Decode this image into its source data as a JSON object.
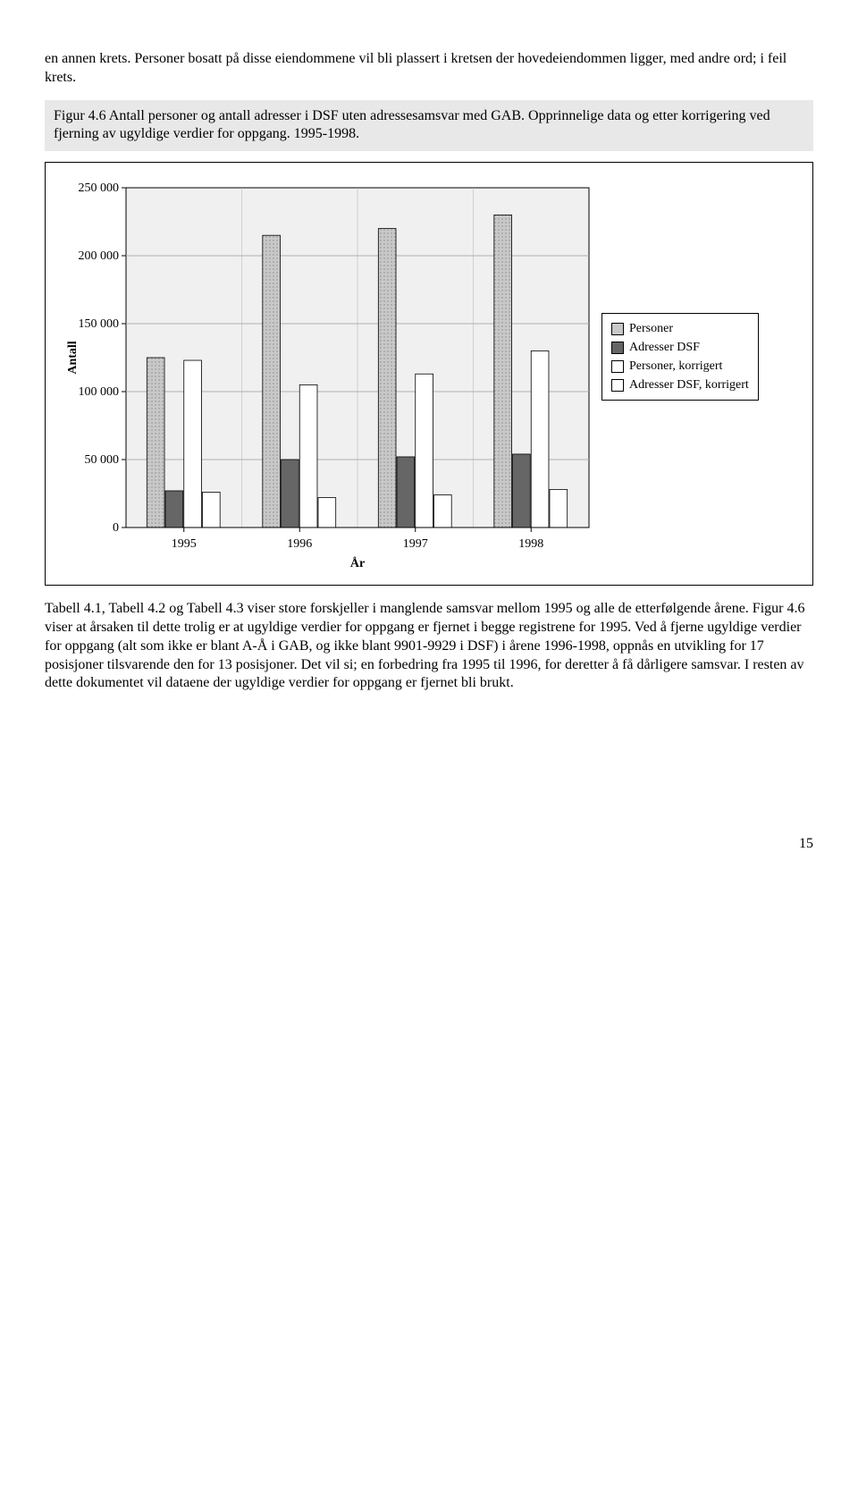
{
  "intro_paragraph": "en annen krets. Personer bosatt på disse eiendommene vil bli plassert i kretsen der hovedeiendommen ligger, med andre ord; i feil krets.",
  "figure_caption": "Figur 4.6 Antall personer og antall adresser i DSF uten adressesamsvar med GAB. Opprinnelige data og etter korrigering ved fjerning av ugyldige verdier for oppgang. 1995-1998.",
  "chart": {
    "type": "bar",
    "y_axis_label": "Antall",
    "x_axis_label": "År",
    "categories": [
      "1995",
      "1996",
      "1997",
      "1998"
    ],
    "series": [
      {
        "name": "Personer",
        "fill": "#c8c8c8",
        "pattern": "dots",
        "values": [
          125000,
          215000,
          220000,
          230000
        ]
      },
      {
        "name": "Adresser DSF",
        "fill": "#666666",
        "pattern": "solid",
        "values": [
          27000,
          50000,
          52000,
          54000
        ]
      },
      {
        "name": "Personer, korrigert",
        "fill": "#ffffff",
        "pattern": "none",
        "values": [
          123000,
          105000,
          113000,
          130000
        ]
      },
      {
        "name": "Adresser DSF, korrigert",
        "fill": "#ffffff",
        "pattern": "none",
        "values": [
          26000,
          22000,
          24000,
          28000
        ]
      }
    ],
    "ylim": [
      0,
      250000
    ],
    "ytick_step": 50000,
    "ytick_labels": [
      "0",
      "50 000",
      "100 000",
      "150 000",
      "200 000",
      "250 000"
    ],
    "plot_bg": "#f0f0f0",
    "grid_color": "#b0b0b0",
    "bar_border": "#000000",
    "label_fontsize": 14,
    "axis_fontsize": 14
  },
  "legend_labels": {
    "s0": "Personer",
    "s1": "Adresser DSF",
    "s2": "Personer, korrigert",
    "s3": "Adresser DSF, korrigert"
  },
  "body_paragraph": "Tabell 4.1, Tabell 4.2 og Tabell 4.3 viser store forskjeller i manglende samsvar mellom 1995 og alle de etterfølgende årene. Figur 4.6 viser at årsaken til dette trolig er at ugyldige verdier for oppgang er fjernet i begge registrene for 1995. Ved å fjerne ugyldige verdier for oppgang (alt som ikke er blant A-Å i GAB, og ikke blant 9901-9929 i DSF) i årene 1996-1998, oppnås en utvikling for 17 posisjoner tilsvarende den for 13 posisjoner. Det vil si; en forbedring fra 1995 til 1996, for deretter å få dårligere samsvar. I resten av dette dokumentet vil dataene der ugyldige verdier for oppgang er fjernet bli brukt.",
  "page_number": "15"
}
